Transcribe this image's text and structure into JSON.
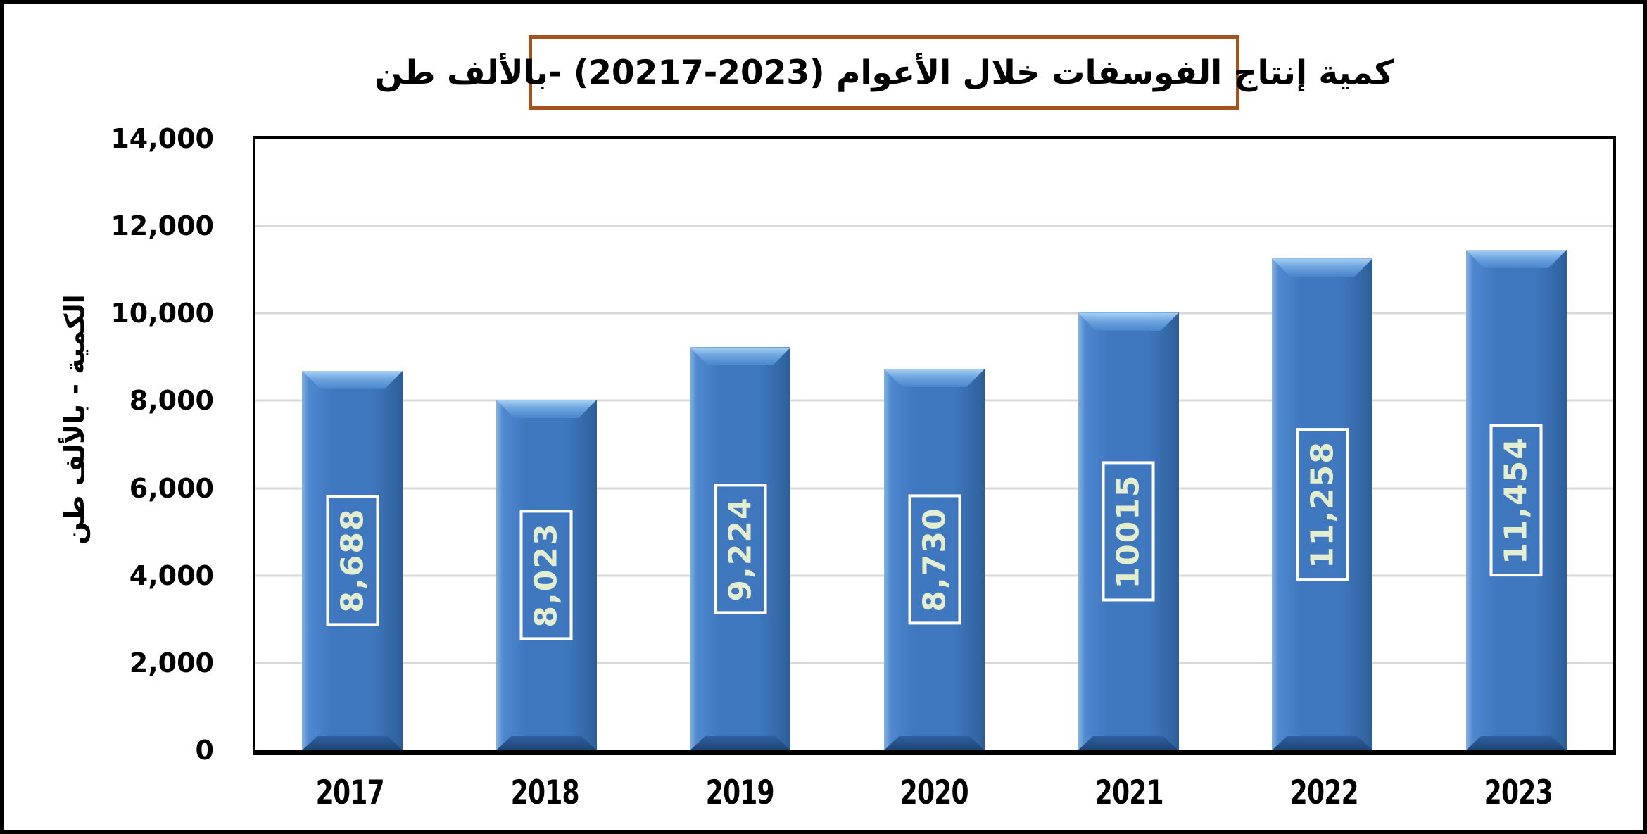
{
  "title": "كمية إنتاج الفوسفات خلال الأعوام (2023-20217) -بالألف طن",
  "chart_data": {
    "type": "bar",
    "title": "كمية إنتاج الفوسفات خلال الأعوام (2023-20217) -بالألف طن",
    "categories": [
      "2017",
      "2018",
      "2019",
      "2020",
      "2021",
      "2022",
      "2023"
    ],
    "values": [
      8688,
      8023,
      9224,
      8730,
      10015,
      11258,
      11454
    ],
    "value_labels": [
      "8,688",
      "8,023",
      "9,224",
      "8,730",
      "10015",
      "11,258",
      "11,454"
    ],
    "xlabel": "",
    "ylabel": "الكمية - بالألف طن",
    "ylim": [
      0,
      14000
    ],
    "grid": true,
    "legend": "none",
    "y_ticks": [
      {
        "value": 0,
        "label": "0"
      },
      {
        "value": 2000,
        "label": "2,000"
      },
      {
        "value": 4000,
        "label": "4,000"
      },
      {
        "value": 6000,
        "label": "6,000"
      },
      {
        "value": 8000,
        "label": "8,000"
      },
      {
        "value": 10000,
        "label": "10,000"
      },
      {
        "value": 12000,
        "label": "12,000"
      },
      {
        "value": 14000,
        "label": "14,000"
      }
    ],
    "colors": {
      "bar_fill": "#4078c0",
      "bar_bevel_light": "#a9d1f5",
      "bar_bevel_dark": "#1e4474",
      "value_label_text": "#e3edd0",
      "value_label_border": "#ffffff",
      "gridline": "#d9d9d9",
      "axis": "#000000",
      "title_border": "#a4521e",
      "title_text": "#000000"
    }
  }
}
